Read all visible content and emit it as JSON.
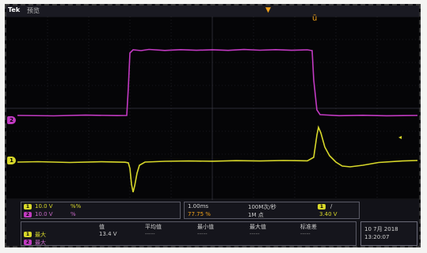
{
  "header": {
    "brand": "Tek",
    "state": "预览"
  },
  "vertical": {
    "ch1_badge": "1",
    "ch1_scale": "10.0 V",
    "ch1_extra": "%%",
    "ch2_badge": "2",
    "ch2_scale": "10.0 V",
    "ch2_extra": "%"
  },
  "horizontal": {
    "timebase": "1.00ms",
    "sample_rate": "100M次/秒",
    "delay": "77.75 %",
    "record_length": "1M 点",
    "trigger_badge": "1",
    "trigger_slope": "/",
    "trigger_level": "3.40 V"
  },
  "measurements": {
    "headers": [
      "值",
      "平均值",
      "最小值",
      "最大值",
      "标准差"
    ],
    "rows": [
      {
        "badge": "1",
        "name": "最大",
        "values": [
          "13.4 V",
          "-----",
          "-----",
          "-----",
          "-----"
        ]
      },
      {
        "badge": "2",
        "name": "最大",
        "values": [
          "",
          "",
          "",
          "",
          ""
        ]
      }
    ]
  },
  "datetime": {
    "date": "10 7月 2018",
    "time": "13:20:07"
  },
  "colors": {
    "ch1": "#d8d82a",
    "ch2": "#c23ac2",
    "trigger": "#f1a21a"
  }
}
